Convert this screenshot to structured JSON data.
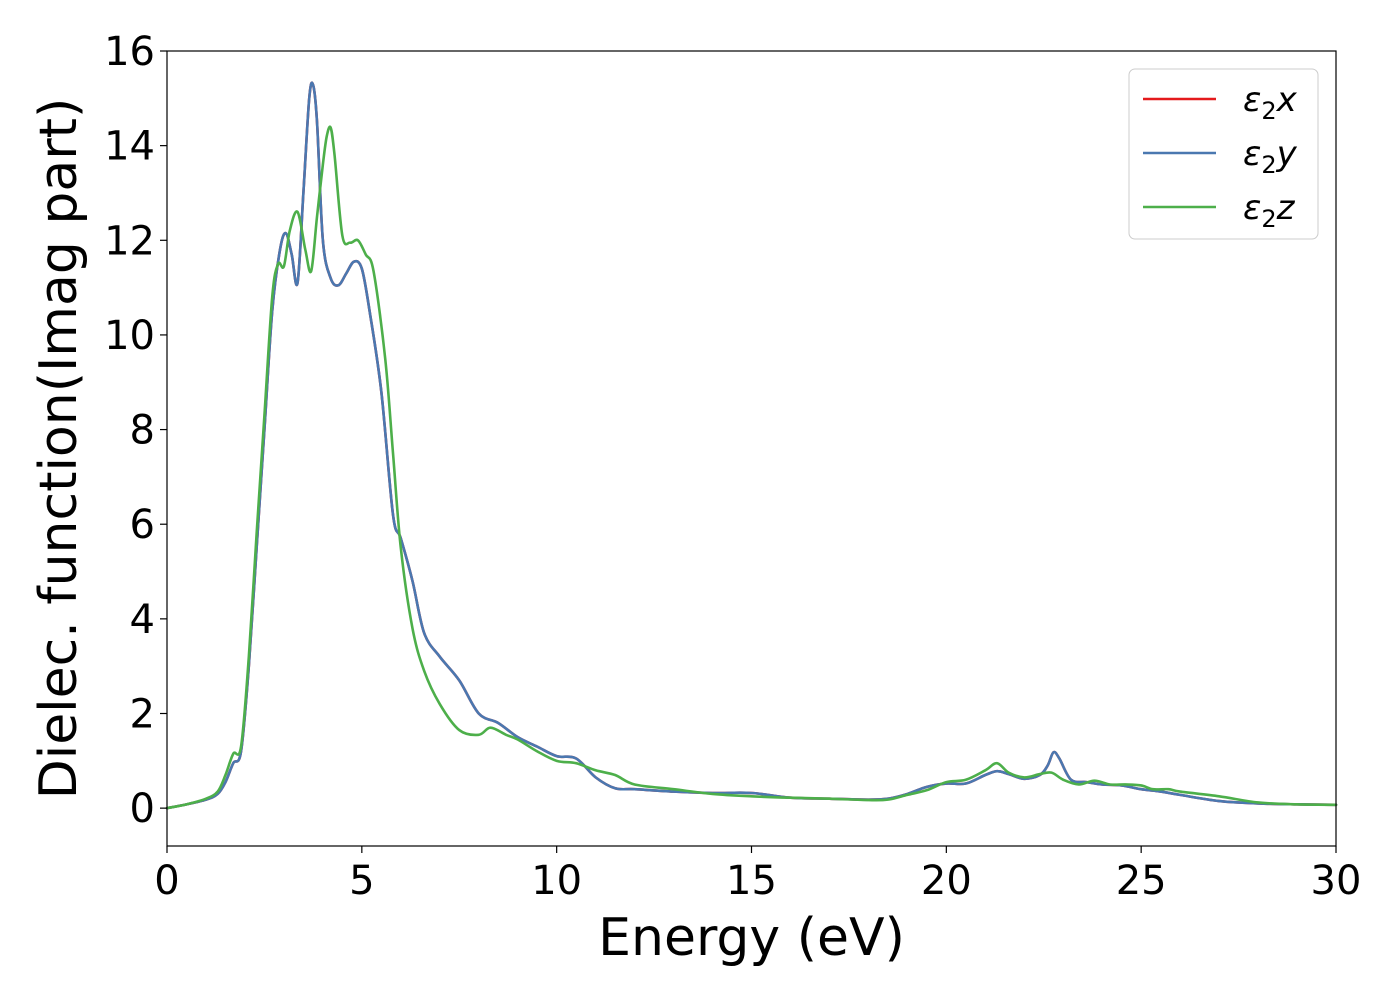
{
  "chart_data": {
    "type": "line",
    "title": "",
    "xlabel": "Energy (eV)",
    "ylabel": "Dielec. function(Imag part)",
    "xlim": [
      0,
      30
    ],
    "ylim": [
      -0.8,
      16
    ],
    "xticks": [
      0,
      5,
      10,
      15,
      20,
      25,
      30
    ],
    "yticks": [
      0,
      2,
      4,
      6,
      8,
      10,
      12,
      14,
      16
    ],
    "grid": false,
    "legend_position": "top-right",
    "series": [
      {
        "name": "ε₂x",
        "legend_main": "ε",
        "legend_sub": "2",
        "legend_tail": "x",
        "color": "#e41a1c",
        "x": [
          0,
          0.5,
          1,
          1.3,
          1.5,
          1.7,
          1.9,
          2.1,
          2.3,
          2.5,
          2.7,
          2.9,
          3.05,
          3.2,
          3.35,
          3.5,
          3.65,
          3.75,
          3.85,
          4.0,
          4.2,
          4.4,
          4.6,
          4.8,
          5.0,
          5.2,
          5.5,
          5.8,
          6.0,
          6.3,
          6.6,
          7.0,
          7.5,
          8.0,
          8.5,
          9.0,
          9.5,
          10.0,
          10.5,
          11.0,
          11.5,
          12.0,
          13.0,
          14.0,
          15.0,
          16.0,
          17.0,
          18.0,
          18.5,
          19.0,
          19.5,
          20.0,
          20.5,
          21.0,
          21.3,
          21.6,
          22.0,
          22.4,
          22.6,
          22.75,
          22.9,
          23.2,
          23.6,
          24.0,
          24.5,
          25.0,
          25.5,
          26.0,
          27.0,
          28.0,
          29.0,
          30.0
        ],
        "values": [
          0,
          0.08,
          0.18,
          0.3,
          0.55,
          0.95,
          1.2,
          3.0,
          5.5,
          8.0,
          10.5,
          11.8,
          12.15,
          11.7,
          11.1,
          13.0,
          15.0,
          15.28,
          14.5,
          12.0,
          11.2,
          11.05,
          11.3,
          11.55,
          11.4,
          10.5,
          8.8,
          6.2,
          5.7,
          4.8,
          3.7,
          3.2,
          2.7,
          2.0,
          1.8,
          1.5,
          1.3,
          1.1,
          1.05,
          0.65,
          0.42,
          0.4,
          0.35,
          0.32,
          0.32,
          0.22,
          0.2,
          0.18,
          0.2,
          0.3,
          0.45,
          0.52,
          0.52,
          0.7,
          0.78,
          0.72,
          0.62,
          0.7,
          0.9,
          1.18,
          1.05,
          0.6,
          0.55,
          0.5,
          0.48,
          0.4,
          0.35,
          0.28,
          0.15,
          0.1,
          0.08,
          0.07
        ]
      },
      {
        "name": "ε₂y",
        "legend_main": "ε",
        "legend_sub": "2",
        "legend_tail": "y",
        "color": "#4a78b0",
        "x": [
          0,
          0.5,
          1,
          1.3,
          1.5,
          1.7,
          1.9,
          2.1,
          2.3,
          2.5,
          2.7,
          2.9,
          3.05,
          3.2,
          3.35,
          3.5,
          3.65,
          3.75,
          3.85,
          4.0,
          4.2,
          4.4,
          4.6,
          4.8,
          5.0,
          5.2,
          5.5,
          5.8,
          6.0,
          6.3,
          6.6,
          7.0,
          7.5,
          8.0,
          8.5,
          9.0,
          9.5,
          10.0,
          10.5,
          11.0,
          11.5,
          12.0,
          13.0,
          14.0,
          15.0,
          16.0,
          17.0,
          18.0,
          18.5,
          19.0,
          19.5,
          20.0,
          20.5,
          21.0,
          21.3,
          21.6,
          22.0,
          22.4,
          22.6,
          22.75,
          22.9,
          23.2,
          23.6,
          24.0,
          24.5,
          25.0,
          25.5,
          26.0,
          27.0,
          28.0,
          29.0,
          30.0
        ],
        "values": [
          0,
          0.08,
          0.18,
          0.3,
          0.55,
          0.95,
          1.2,
          3.0,
          5.5,
          8.0,
          10.5,
          11.8,
          12.15,
          11.7,
          11.1,
          13.0,
          15.0,
          15.28,
          14.5,
          12.0,
          11.2,
          11.05,
          11.3,
          11.55,
          11.4,
          10.5,
          8.8,
          6.2,
          5.7,
          4.8,
          3.7,
          3.2,
          2.7,
          2.0,
          1.8,
          1.5,
          1.3,
          1.1,
          1.05,
          0.65,
          0.42,
          0.4,
          0.35,
          0.32,
          0.32,
          0.22,
          0.2,
          0.18,
          0.2,
          0.3,
          0.45,
          0.52,
          0.52,
          0.7,
          0.78,
          0.72,
          0.62,
          0.7,
          0.9,
          1.18,
          1.05,
          0.6,
          0.55,
          0.5,
          0.48,
          0.4,
          0.35,
          0.28,
          0.15,
          0.1,
          0.08,
          0.07
        ]
      },
      {
        "name": "ε₂z",
        "legend_main": "ε",
        "legend_sub": "2",
        "legend_tail": "z",
        "color": "#4daf4a",
        "x": [
          0,
          0.5,
          1,
          1.3,
          1.5,
          1.7,
          1.9,
          2.1,
          2.3,
          2.5,
          2.7,
          2.85,
          3.0,
          3.15,
          3.35,
          3.55,
          3.7,
          3.85,
          4.0,
          4.1,
          4.2,
          4.3,
          4.5,
          4.7,
          4.9,
          5.1,
          5.3,
          5.6,
          5.8,
          6.0,
          6.3,
          6.6,
          7.0,
          7.5,
          8.0,
          8.3,
          8.7,
          9.0,
          9.5,
          10.0,
          10.5,
          11.0,
          11.5,
          12.0,
          13.0,
          14.0,
          15.0,
          16.0,
          17.0,
          18.0,
          18.5,
          19.0,
          19.5,
          20.0,
          20.5,
          21.0,
          21.3,
          21.6,
          22.0,
          22.4,
          22.7,
          23.0,
          23.4,
          23.8,
          24.2,
          24.6,
          25.0,
          25.3,
          25.7,
          26.0,
          27.0,
          28.0,
          29.0,
          30.0
        ],
        "values": [
          0,
          0.08,
          0.2,
          0.35,
          0.7,
          1.15,
          1.3,
          3.2,
          5.8,
          8.3,
          10.8,
          11.5,
          11.45,
          12.2,
          12.6,
          11.8,
          11.35,
          12.5,
          13.6,
          14.2,
          14.38,
          13.8,
          12.1,
          11.95,
          12.0,
          11.7,
          11.35,
          9.5,
          7.5,
          5.5,
          3.8,
          2.9,
          2.2,
          1.65,
          1.55,
          1.7,
          1.55,
          1.45,
          1.2,
          1.0,
          0.95,
          0.8,
          0.7,
          0.5,
          0.4,
          0.3,
          0.25,
          0.22,
          0.2,
          0.17,
          0.18,
          0.28,
          0.38,
          0.55,
          0.6,
          0.8,
          0.95,
          0.75,
          0.65,
          0.72,
          0.75,
          0.6,
          0.5,
          0.58,
          0.5,
          0.5,
          0.48,
          0.4,
          0.4,
          0.35,
          0.25,
          0.12,
          0.08,
          0.07
        ]
      }
    ]
  }
}
